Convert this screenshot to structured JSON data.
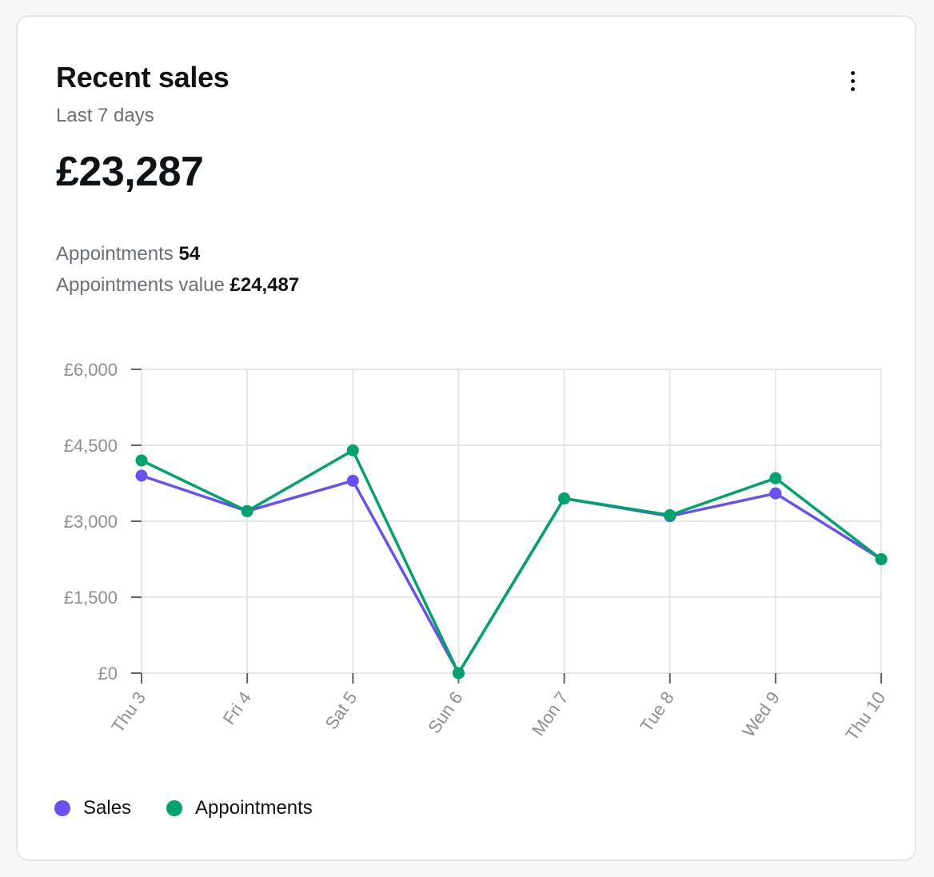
{
  "card": {
    "title": "Recent sales",
    "subtitle": "Last 7 days",
    "total": "£23,287",
    "appointments_label": "Appointments",
    "appointments_count": "54",
    "appointments_value_label": "Appointments value",
    "appointments_value": "£24,487",
    "menu_icon": "more-vertical-icon"
  },
  "colors": {
    "sales": "#6950f3",
    "appointments": "#00a36d",
    "grid": "#e6e6e8",
    "axis": "#5f6368",
    "tick_text": "#8b8f96"
  },
  "chart_data": {
    "type": "line",
    "categories": [
      "Thu 3",
      "Fri 4",
      "Sat 5",
      "Sun 6",
      "Mon 7",
      "Tue 8",
      "Wed 9",
      "Thu 10"
    ],
    "series": [
      {
        "name": "Sales",
        "values": [
          3900,
          3200,
          3800,
          0,
          3450,
          3100,
          3550,
          2250
        ]
      },
      {
        "name": "Appointments",
        "values": [
          4200,
          3200,
          4400,
          0,
          3450,
          3120,
          3850,
          2250
        ]
      }
    ],
    "ylim": [
      0,
      6000
    ],
    "yticks": [
      {
        "value": 0,
        "label": "£0"
      },
      {
        "value": 1500,
        "label": "£1,500"
      },
      {
        "value": 3000,
        "label": "£3,000"
      },
      {
        "value": 4500,
        "label": "£4,500"
      },
      {
        "value": 6000,
        "label": "£6,000"
      }
    ],
    "grid": true,
    "legend": "bottom-left",
    "xlabel": "",
    "ylabel": ""
  }
}
